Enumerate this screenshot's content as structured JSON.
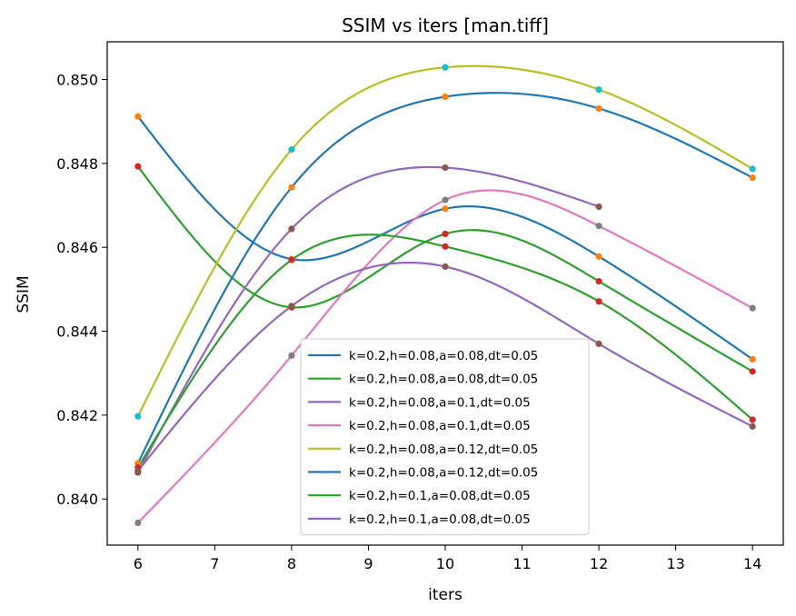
{
  "chart_data": {
    "type": "line",
    "title": "SSIM vs iters  [man.tiff]",
    "xlabel": "iters",
    "ylabel": "SSIM",
    "xlim": [
      5.6,
      14.4
    ],
    "ylim": [
      0.8389,
      0.8509
    ],
    "x_ticks": [
      6,
      7,
      8,
      9,
      10,
      11,
      12,
      13,
      14
    ],
    "y_ticks": [
      0.84,
      0.842,
      0.844,
      0.846,
      0.848,
      0.85
    ],
    "y_tick_labels": [
      "0.840",
      "0.842",
      "0.844",
      "0.846",
      "0.848",
      "0.850"
    ],
    "legend_position": "lower center",
    "grid": false,
    "smoothed": true,
    "series": [
      {
        "name": "k=0.2,h=0.08,a=0.08,dt=0.05",
        "color": "#1f77b4",
        "marker_color": "#ff7f0e",
        "x": [
          6,
          8,
          10,
          12,
          14
        ],
        "y": [
          0.84912,
          0.84572,
          0.84692,
          0.84578,
          0.84333
        ]
      },
      {
        "name": "k=0.2,h=0.08,a=0.08,dt=0.05",
        "color": "#2ca02c",
        "marker_color": "#d62728",
        "x": [
          6,
          8,
          10,
          12,
          14
        ],
        "y": [
          0.84793,
          0.84457,
          0.84632,
          0.84519,
          0.84304
        ]
      },
      {
        "name": "k=0.2,h=0.08,a=0.1,dt=0.05",
        "color": "#9467bd",
        "marker_color": "#8c564b",
        "x": [
          6,
          8,
          10,
          12
        ],
        "y": [
          0.84063,
          0.84644,
          0.8479,
          0.84697
        ]
      },
      {
        "name": "k=0.2,h=0.08,a=0.1,dt=0.05",
        "color": "#e377c2",
        "marker_color": "#7f7f7f",
        "x": [
          6,
          8,
          10,
          12,
          14
        ],
        "y": [
          0.83943,
          0.84342,
          0.84713,
          0.84651,
          0.84455
        ]
      },
      {
        "name": "k=0.2,h=0.08,a=0.12,dt=0.05",
        "color": "#bcbd22",
        "marker_color": "#17becf",
        "x": [
          6,
          8,
          10,
          12,
          14
        ],
        "y": [
          0.84197,
          0.84833,
          0.85029,
          0.84976,
          0.84787
        ]
      },
      {
        "name": "k=0.2,h=0.08,a=0.12,dt=0.05",
        "color": "#1f77b4",
        "marker_color": "#ff7f0e",
        "x": [
          6,
          8,
          10,
          12,
          14
        ],
        "y": [
          0.84085,
          0.84743,
          0.84959,
          0.84931,
          0.84766
        ]
      },
      {
        "name": "k=0.2,h=0.1,a=0.08,dt=0.05",
        "color": "#2ca02c",
        "marker_color": "#d62728",
        "x": [
          6,
          8,
          10,
          12,
          14
        ],
        "y": [
          0.84075,
          0.8457,
          0.84602,
          0.84471,
          0.84189
        ]
      },
      {
        "name": "k=0.2,h=0.1,a=0.08,dt=0.05",
        "color": "#9467bd",
        "marker_color": "#8c564b",
        "x": [
          6,
          8,
          10,
          12,
          14
        ],
        "y": [
          0.84067,
          0.8446,
          0.84554,
          0.8437,
          0.84173
        ]
      }
    ]
  }
}
